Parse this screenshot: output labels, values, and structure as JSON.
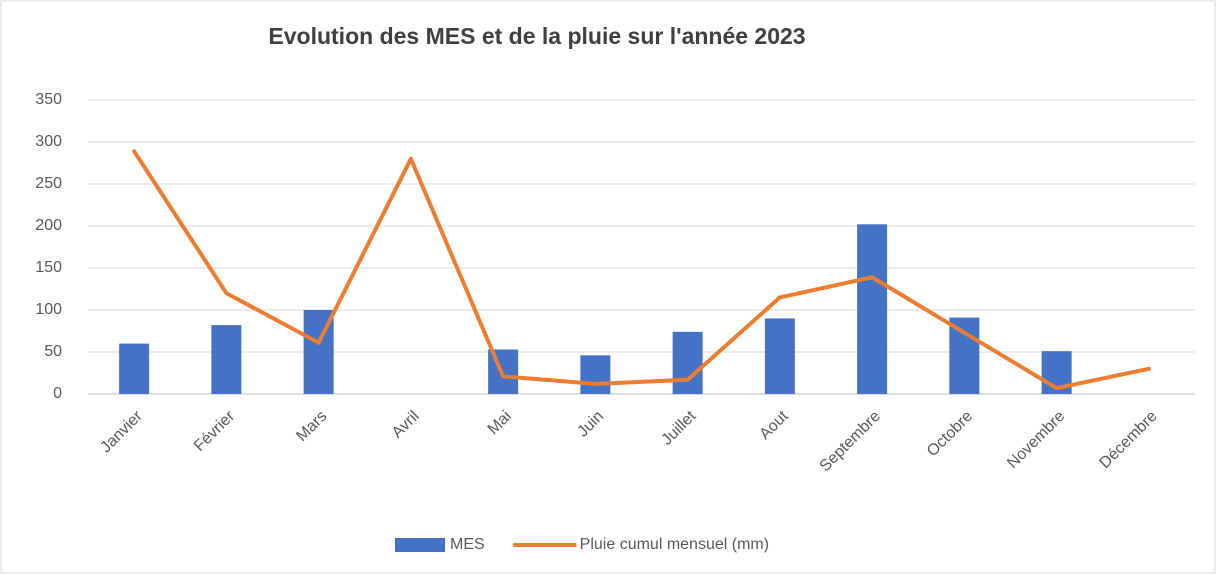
{
  "chart_data": {
    "type": "combo",
    "title": "Evolution des MES et de la pluie sur l'année 2023",
    "categories": [
      "Janvier",
      "Février",
      "Mars",
      "Avril",
      "Mai",
      "Juin",
      "Juillet",
      "Aout",
      "Septembre",
      "Octobre",
      "Novembre",
      "Décembre"
    ],
    "series": [
      {
        "name": "MES",
        "type": "bar",
        "color": "#4472c4",
        "values": [
          60,
          82,
          100,
          null,
          53,
          46,
          74,
          90,
          202,
          91,
          51,
          null
        ]
      },
      {
        "name": "Pluie cumul mensuel (mm)",
        "type": "line",
        "color": "#ed7d31",
        "values": [
          289,
          120,
          61,
          280,
          21,
          12,
          17,
          115,
          139,
          73,
          7,
          30
        ]
      }
    ],
    "ylim": [
      0,
      350
    ],
    "yticks": [
      0,
      50,
      100,
      150,
      200,
      250,
      300,
      350
    ],
    "grid": true,
    "legend": "bottom"
  }
}
